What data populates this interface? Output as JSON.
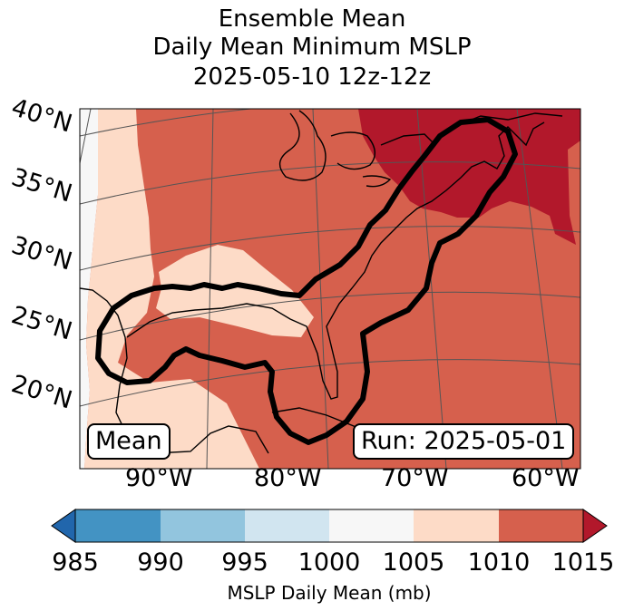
{
  "title": {
    "line1": "Ensemble Mean",
    "line2": "Daily Mean Minimum MSLP",
    "line3": "2025-05-10 12z-12z"
  },
  "map": {
    "lat_labels": [
      "40°N",
      "35°N",
      "30°N",
      "25°N",
      "20°N"
    ],
    "lon_labels": [
      "90°W",
      "80°W",
      "70°W",
      "60°W"
    ],
    "mean_badge": "Mean",
    "run_badge": "Run: 2025-05-01",
    "colors": {
      "below_985": "#2166ac",
      "c985_990": "#4393c3",
      "c990_995": "#92c5de",
      "c995_1000": "#d1e5f0",
      "c1000_1005": "#f7f7f7",
      "c1005_1010": "#fddbc7",
      "c1010_1015": "#d6604d",
      "above_1015": "#b2182b",
      "coast": "#000000",
      "contour": "#000000"
    }
  },
  "colorbar": {
    "ticks": [
      "985",
      "990",
      "995",
      "1000",
      "1005",
      "1010",
      "1015"
    ],
    "label": "MSLP Daily Mean (mb)"
  }
}
